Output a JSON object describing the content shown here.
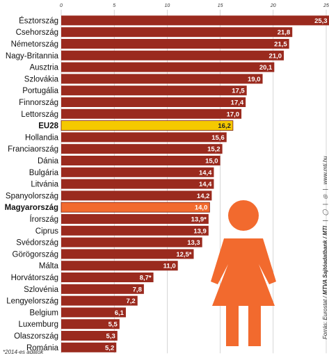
{
  "chart_data": {
    "type": "bar",
    "orientation": "horizontal",
    "xlim": [
      0,
      25
    ],
    "x_ticks": [
      "0",
      "5",
      "10",
      "15",
      "20",
      "25"
    ],
    "grid": true,
    "categories": [
      "Észtország",
      "Csehország",
      "Németország",
      "Nagy-Britannia",
      "Ausztria",
      "Szlovákia",
      "Portugália",
      "Finnország",
      "Lettország",
      "EU28",
      "Hollandia",
      "Franciaország",
      "Dánia",
      "Bulgária",
      "Litvánia",
      "Spanyolország",
      "Magyarország",
      "Írország",
      "Ciprus",
      "Svédország",
      "Görögország",
      "Málta",
      "Horvátország",
      "Szlovénia",
      "Lengyelország",
      "Belgium",
      "Luxemburg",
      "Olaszország",
      "Románia"
    ],
    "values": [
      25.3,
      21.8,
      21.5,
      21.0,
      20.1,
      19.0,
      17.5,
      17.4,
      17.0,
      16.2,
      15.6,
      15.2,
      15.0,
      14.4,
      14.4,
      14.2,
      14.0,
      13.9,
      13.9,
      13.3,
      12.5,
      11.0,
      8.7,
      7.8,
      7.2,
      6.1,
      5.5,
      5.3,
      5.2
    ],
    "value_labels": [
      "25,3",
      "21,8",
      "21,5",
      "21,0",
      "20,1",
      "19,0",
      "17,5",
      "17,4",
      "17,0",
      "16,2",
      "15,6",
      "15,2",
      "15,0",
      "14,4",
      "14,4",
      "14,2",
      "14,0",
      "13,9*",
      "13,9",
      "13,3",
      "12,5*",
      "11,0",
      "8,7*",
      "7,8",
      "7,2",
      "6,1",
      "5,5",
      "5,3",
      "5,2"
    ],
    "highlight": {
      "EU28": "eu",
      "Magyarország": "hu"
    },
    "colors": {
      "bar": "#9a2a1e",
      "eu": "#f5c900",
      "hu": "#f26a2e",
      "figure": "#f26a2e",
      "grid": "#bbbbbb"
    }
  },
  "footnote": "*2014-es adatok",
  "source": {
    "prefix": "Forrás: Eurostat /",
    "agency": "MTVA Sajtóadatbank / MTI",
    "url": "www.mti.hu"
  }
}
